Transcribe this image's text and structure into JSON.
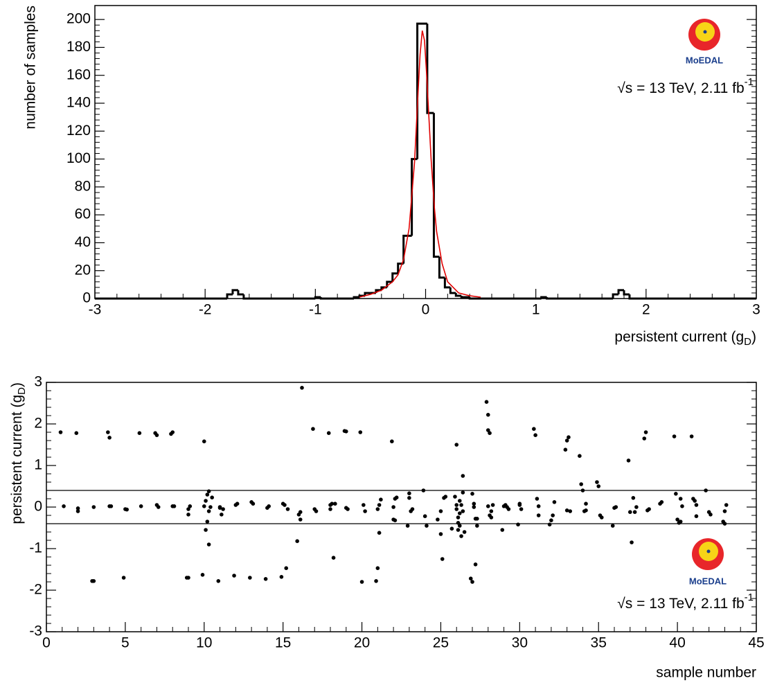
{
  "chart_data": [
    {
      "type": "histogram",
      "color": "#000000",
      "bins": [
        -3,
        -1.8,
        -1.75,
        -1.7,
        -1.65,
        -1.0,
        -0.95,
        -0.65,
        -0.6,
        -0.55,
        -0.5,
        -0.45,
        -0.4,
        -0.35,
        -0.3,
        -0.25,
        -0.2,
        -0.125,
        -0.075,
        0.015,
        0.075,
        0.125,
        0.175,
        0.225,
        0.275,
        0.325,
        0.4,
        1.05,
        1.1,
        1.7,
        1.75,
        1.8,
        1.85,
        3
      ],
      "values": [
        0,
        3,
        6,
        3,
        0,
        1,
        0,
        1,
        2,
        4,
        4,
        6,
        8,
        12,
        18,
        25,
        45,
        100,
        197,
        133,
        30,
        15,
        8,
        4,
        2,
        1,
        0,
        1,
        0,
        3,
        6,
        3,
        0
      ],
      "fit": {
        "color": "#e00000",
        "x": [
          -0.6,
          -0.5,
          -0.4,
          -0.3,
          -0.25,
          -0.2,
          -0.15,
          -0.1,
          -0.07,
          -0.05,
          -0.03,
          -0.01,
          0.01,
          0.03,
          0.05,
          0.08,
          0.1,
          0.15,
          0.2,
          0.3,
          0.4,
          0.5
        ],
        "values": [
          1,
          3,
          6,
          12,
          17,
          28,
          50,
          98,
          145,
          175,
          192,
          185,
          160,
          130,
          100,
          65,
          48,
          25,
          12,
          4,
          2,
          1
        ]
      },
      "xlim": [
        -3,
        3
      ],
      "xticks": [
        -3,
        -2,
        -1,
        0,
        1,
        2,
        3
      ],
      "ylim": [
        0,
        210
      ],
      "yticks": [
        0,
        20,
        40,
        60,
        80,
        100,
        120,
        140,
        160,
        180,
        200
      ],
      "xlabel": [
        "persistent current (g",
        "D",
        ")"
      ],
      "ylabel": "number of samples",
      "annotation": [
        "√s = 13 TeV, 2.11 fb",
        "-1"
      ],
      "logo": "MoEDAL"
    },
    {
      "type": "scatter",
      "color": "#000000",
      "x": [
        0.9,
        1.1,
        1.9,
        2.0,
        2.0,
        2.9,
        3.0,
        3.0,
        3.9,
        4.0,
        4.0,
        4.1,
        4.9,
        5.0,
        5.1,
        5.9,
        6.0,
        6.9,
        7.0,
        7.0,
        7.1,
        7.9,
        8.0,
        8.0,
        8.1,
        8.9,
        9.0,
        9.0,
        9.1,
        9.0,
        9.9,
        10.0,
        10.0,
        10.1,
        10.2,
        10.3,
        10.2,
        10.1,
        10.3,
        10.3,
        10.4,
        10.5,
        10.9,
        11.0,
        11.1,
        11.2,
        11.0,
        11.9,
        12.0,
        12.1,
        12.9,
        13.0,
        13.1,
        13.9,
        14.0,
        14.1,
        14.9,
        15.2,
        15.0,
        15.1,
        15.3,
        15.9,
        16.0,
        16.1,
        16.1,
        16.2,
        16.9,
        17.0,
        17.1,
        17.9,
        18.0,
        18.1,
        18.2,
        18.0,
        18.3,
        18.9,
        19.0,
        19.0,
        19.1,
        19.9,
        20.0,
        20.1,
        20.2,
        20.9,
        21.0,
        21.1,
        21.0,
        21.1,
        21.2,
        21.9,
        22.0,
        22.1,
        22.2,
        22.1,
        22.0,
        22.9,
        23.0,
        23.1,
        23.0,
        23.2,
        23.9,
        24.0,
        24.1,
        24.8,
        25.0,
        25.1,
        25.2,
        25.0,
        25.3,
        25.7,
        25.9,
        26.0,
        26.0,
        26.1,
        26.1,
        26.1,
        26.2,
        26.3,
        26.3,
        26.2,
        26.4,
        26.4,
        26.4,
        26.5,
        26.0,
        26.2,
        26.9,
        27.0,
        27.0,
        27.1,
        27.2,
        27.3,
        27.2,
        27.3,
        27.1,
        27.9,
        28.0,
        28.0,
        28.1,
        28.1,
        28.2,
        28.2,
        28.3,
        28.0,
        28.9,
        29.0,
        29.1,
        29.2,
        29.3,
        29.9,
        30.0,
        30.0,
        30.1,
        30.9,
        31.0,
        31.1,
        31.2,
        31.2,
        31.9,
        32.0,
        32.1,
        32.2,
        32.9,
        33.0,
        33.1,
        33.0,
        33.2,
        33.8,
        33.9,
        34.0,
        34.1,
        34.2,
        34.2,
        34.9,
        35.0,
        35.1,
        35.2,
        35.9,
        36.0,
        36.1,
        36.9,
        37.0,
        37.1,
        37.2,
        37.3,
        37.4,
        37.9,
        38.0,
        38.1,
        38.2,
        38.9,
        39.0,
        39.8,
        39.9,
        40.0,
        40.1,
        40.2,
        40.2,
        40.3,
        40.9,
        41.0,
        41.1,
        41.2,
        41.2,
        41.8,
        42.0,
        42.1,
        42.9,
        43.0,
        43.0,
        43.1
      ],
      "values": [
        1.8,
        0.02,
        1.78,
        -0.1,
        -0.03,
        -1.78,
        -1.78,
        0.0,
        1.8,
        1.67,
        0.02,
        0.02,
        -1.7,
        -0.05,
        -0.06,
        1.78,
        0.02,
        1.78,
        1.73,
        0.05,
        0.0,
        1.76,
        1.8,
        0.02,
        0.02,
        -1.7,
        -1.7,
        -0.05,
        0.02,
        -0.18,
        -1.63,
        1.58,
        0.02,
        0.15,
        0.3,
        0.38,
        -0.35,
        -0.55,
        -0.9,
        -0.1,
        0.0,
        0.23,
        -1.78,
        0.0,
        -0.18,
        -0.05,
        -0.02,
        -1.65,
        0.05,
        0.08,
        -1.7,
        0.12,
        0.08,
        -1.73,
        -0.02,
        0.02,
        -1.68,
        -1.47,
        0.08,
        0.05,
        -0.05,
        -0.82,
        -0.18,
        -0.3,
        -0.12,
        2.87,
        1.88,
        -0.05,
        -0.1,
        1.78,
        0.05,
        0.08,
        -1.22,
        -0.05,
        0.08,
        1.83,
        1.82,
        -0.02,
        -0.05,
        1.8,
        -1.8,
        0.05,
        -0.1,
        -1.78,
        -1.47,
        -0.62,
        -0.05,
        0.05,
        0.18,
        1.58,
        -0.3,
        0.2,
        0.23,
        -0.32,
        0.0,
        -0.45,
        0.22,
        -0.1,
        0.33,
        -0.05,
        0.4,
        -0.22,
        -0.45,
        -0.3,
        -0.65,
        -1.25,
        0.22,
        -0.1,
        0.25,
        -0.52,
        0.25,
        1.5,
        -0.05,
        -0.25,
        -0.55,
        -0.38,
        0.15,
        0.05,
        -0.7,
        -0.45,
        0.35,
        0.75,
        -0.1,
        -0.6,
        0.05,
        -0.15,
        -1.72,
        -1.8,
        0.32,
        0.08,
        -0.28,
        -0.28,
        -1.38,
        -0.45,
        0.0,
        2.53,
        2.22,
        1.85,
        1.78,
        -0.2,
        -0.1,
        -0.25,
        0.05,
        0.02,
        -0.55,
        0.02,
        0.05,
        0.0,
        -0.05,
        -0.42,
        0.05,
        0.08,
        -0.05,
        1.88,
        1.73,
        0.2,
        -0.2,
        0.02,
        -0.42,
        -0.32,
        -0.2,
        0.12,
        1.38,
        1.6,
        1.68,
        -0.08,
        -0.1,
        1.23,
        0.55,
        0.4,
        -0.1,
        0.08,
        -0.08,
        0.6,
        0.5,
        -0.2,
        -0.25,
        -0.45,
        -0.02,
        0.0,
        1.12,
        -0.12,
        -0.85,
        0.22,
        -0.12,
        0.0,
        1.65,
        1.8,
        -0.08,
        -0.05,
        0.08,
        0.12,
        1.7,
        0.32,
        -0.3,
        -0.38,
        0.2,
        -0.35,
        0.02,
        1.7,
        0.2,
        0.15,
        -0.22,
        0.05,
        0.4,
        -0.12,
        -0.18,
        -0.35,
        -0.4,
        -0.1,
        0.05
      ],
      "hlines": [
        0.4,
        -0.4
      ],
      "xlim": [
        0,
        45
      ],
      "xticks": [
        0,
        5,
        10,
        15,
        20,
        25,
        30,
        35,
        40,
        45
      ],
      "ylim": [
        -3,
        3
      ],
      "yticks": [
        -3,
        -2,
        -1,
        0,
        1,
        2,
        3
      ],
      "xlabel": "sample number",
      "ylabel": [
        "persistent current (g",
        "D",
        ")"
      ],
      "annotation": [
        "√s = 13 TeV, 2.11 fb",
        "-1"
      ],
      "logo": "MoEDAL"
    }
  ]
}
